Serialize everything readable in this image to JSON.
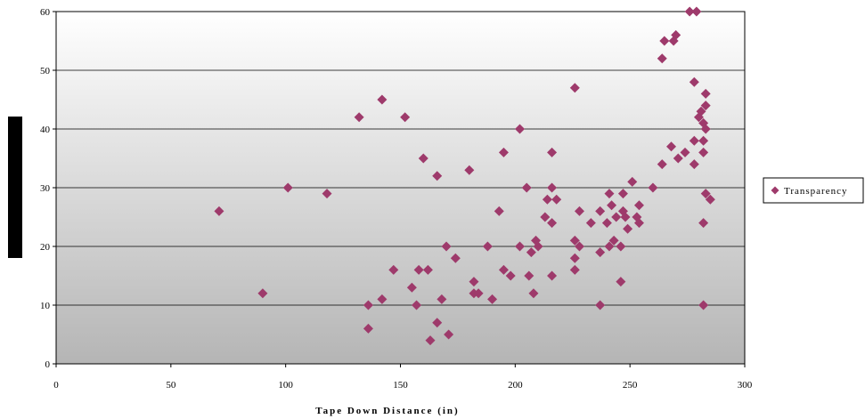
{
  "chart_data": {
    "type": "scatter",
    "xlabel": "Tape Down Distance (in)",
    "ylabel": "",
    "xlim": [
      0,
      300
    ],
    "ylim": [
      0,
      60
    ],
    "x_ticks": [
      0,
      50,
      100,
      150,
      200,
      250,
      300
    ],
    "y_ticks": [
      0,
      10,
      20,
      30,
      40,
      50,
      60
    ],
    "grid": "horizontal",
    "legend_position": "right",
    "colors": {
      "marker": "#9e3a6b",
      "plot_top": "#ffffff",
      "plot_bottom": "#b5b5b5"
    },
    "series": [
      {
        "name": "Transparency",
        "marker": "diamond",
        "points": [
          [
            71,
            26
          ],
          [
            90,
            12
          ],
          [
            101,
            30
          ],
          [
            118,
            29
          ],
          [
            132,
            42
          ],
          [
            136,
            10
          ],
          [
            136,
            6
          ],
          [
            142,
            45
          ],
          [
            142,
            11
          ],
          [
            147,
            16
          ],
          [
            152,
            42
          ],
          [
            155,
            13
          ],
          [
            157,
            10
          ],
          [
            158,
            16
          ],
          [
            160,
            35
          ],
          [
            162,
            16
          ],
          [
            163,
            4
          ],
          [
            166,
            32
          ],
          [
            166,
            7
          ],
          [
            168,
            11
          ],
          [
            170,
            20
          ],
          [
            171,
            5
          ],
          [
            174,
            18
          ],
          [
            180,
            33
          ],
          [
            182,
            14
          ],
          [
            182,
            12
          ],
          [
            184,
            12
          ],
          [
            188,
            20
          ],
          [
            190,
            11
          ],
          [
            193,
            26
          ],
          [
            195,
            36
          ],
          [
            195,
            16
          ],
          [
            198,
            15
          ],
          [
            202,
            40
          ],
          [
            202,
            20
          ],
          [
            205,
            30
          ],
          [
            206,
            15
          ],
          [
            207,
            19
          ],
          [
            208,
            12
          ],
          [
            209,
            21
          ],
          [
            210,
            20
          ],
          [
            213,
            25
          ],
          [
            214,
            28
          ],
          [
            216,
            36
          ],
          [
            216,
            30
          ],
          [
            216,
            24
          ],
          [
            216,
            15
          ],
          [
            218,
            28
          ],
          [
            226,
            47
          ],
          [
            226,
            21
          ],
          [
            226,
            18
          ],
          [
            226,
            16
          ],
          [
            228,
            26
          ],
          [
            228,
            20
          ],
          [
            233,
            24
          ],
          [
            237,
            26
          ],
          [
            237,
            19
          ],
          [
            237,
            10
          ],
          [
            240,
            24
          ],
          [
            241,
            29
          ],
          [
            241,
            20
          ],
          [
            242,
            27
          ],
          [
            243,
            21
          ],
          [
            244,
            25
          ],
          [
            246,
            20
          ],
          [
            246,
            14
          ],
          [
            247,
            29
          ],
          [
            247,
            26
          ],
          [
            248,
            25
          ],
          [
            249,
            23
          ],
          [
            251,
            31
          ],
          [
            253,
            25
          ],
          [
            254,
            27
          ],
          [
            254,
            24
          ],
          [
            260,
            30
          ],
          [
            264,
            52
          ],
          [
            264,
            34
          ],
          [
            265,
            55
          ],
          [
            268,
            37
          ],
          [
            269,
            55
          ],
          [
            270,
            56
          ],
          [
            271,
            35
          ],
          [
            274,
            36
          ],
          [
            276,
            60
          ],
          [
            278,
            48
          ],
          [
            278,
            38
          ],
          [
            278,
            34
          ],
          [
            279,
            60
          ],
          [
            280,
            42
          ],
          [
            281,
            43
          ],
          [
            282,
            41
          ],
          [
            282,
            38
          ],
          [
            282,
            36
          ],
          [
            282,
            24
          ],
          [
            282,
            10
          ],
          [
            283,
            46
          ],
          [
            283,
            44
          ],
          [
            283,
            40
          ],
          [
            283,
            29
          ],
          [
            285,
            28
          ]
        ]
      }
    ]
  }
}
